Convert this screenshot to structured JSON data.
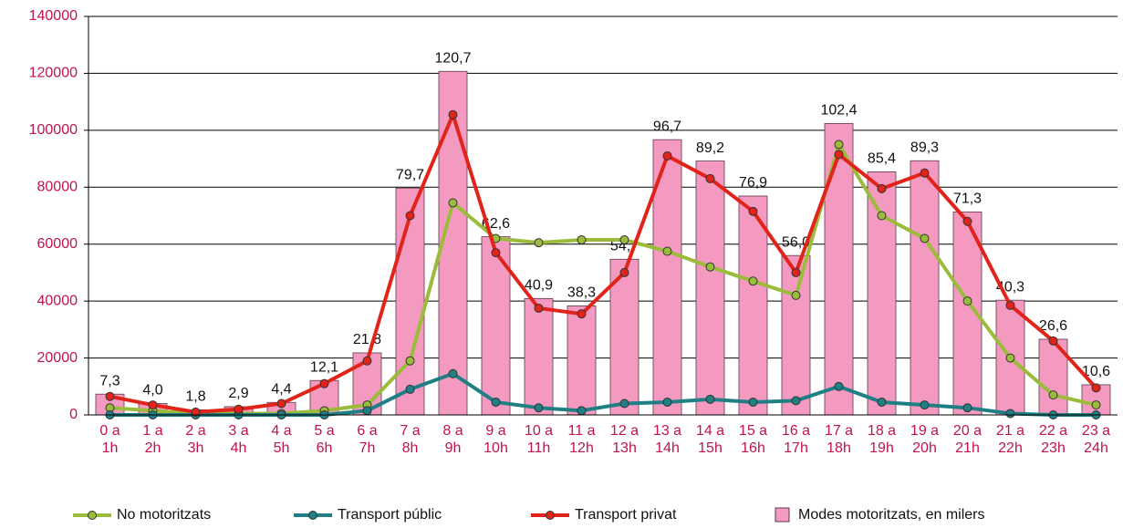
{
  "chart_data": {
    "type": "bar_line",
    "categories": [
      "0 a 1h",
      "1 a 2h",
      "2 a 3h",
      "3 a 4h",
      "4 a 5h",
      "5 a 6h",
      "6 a 7h",
      "7 a 8h",
      "8 a 9h",
      "9 a 10h",
      "10 a 11h",
      "11 a 12h",
      "12 a 13h",
      "13 a 14h",
      "14 a 15h",
      "15 a 16h",
      "16 a 17h",
      "17 a 18h",
      "18 a 19h",
      "19 a 20h",
      "20 a 21h",
      "21 a 22h",
      "22 a 23h",
      "23 a 24h"
    ],
    "bars": {
      "name": "Modes motoritzats, en milers",
      "color": "#f49ac1",
      "values": [
        7300,
        4000,
        1800,
        2900,
        4400,
        12100,
        21800,
        79700,
        120700,
        62600,
        40900,
        38300,
        54700,
        96700,
        89200,
        76900,
        56000,
        102400,
        85400,
        89300,
        71300,
        40300,
        26600,
        10600
      ],
      "value_labels": [
        "7,3",
        "4,0",
        "1,8",
        "2,9",
        "4,4",
        "12,1",
        "21,8",
        "79,7",
        "120,7",
        "62,6",
        "40,9",
        "38,3",
        "54,7",
        "96,7",
        "89,2",
        "76,9",
        "56,0",
        "102,4",
        "85,4",
        "89,3",
        "71,3",
        "40,3",
        "26,6",
        "10,6"
      ]
    },
    "series": [
      {
        "name": "No motoritzats",
        "color": "#9bbb3b",
        "values": [
          2500,
          1500,
          500,
          500,
          500,
          1500,
          3500,
          19000,
          74500,
          62000,
          60500,
          61500,
          61500,
          57500,
          52000,
          47000,
          42000,
          95000,
          70000,
          62000,
          40000,
          20000,
          7000,
          3500
        ]
      },
      {
        "name": "Transport públic",
        "color": "#1f7f85",
        "values": [
          0,
          0,
          0,
          0,
          0,
          0,
          1500,
          9000,
          14500,
          4500,
          2500,
          1500,
          4000,
          4500,
          5500,
          4500,
          5000,
          10000,
          4500,
          3500,
          2500,
          500,
          0,
          0
        ]
      },
      {
        "name": "Transport privat",
        "color": "#e2231a",
        "values": [
          6500,
          3500,
          1000,
          2000,
          4000,
          11000,
          19000,
          70000,
          105500,
          57000,
          37500,
          35500,
          50000,
          91000,
          83000,
          71500,
          50000,
          91500,
          79500,
          85000,
          68000,
          38500,
          26000,
          9500
        ]
      }
    ],
    "ylim": [
      0,
      140000
    ],
    "yticks": [
      0,
      20000,
      40000,
      60000,
      80000,
      100000,
      120000,
      140000
    ],
    "grid": true
  }
}
